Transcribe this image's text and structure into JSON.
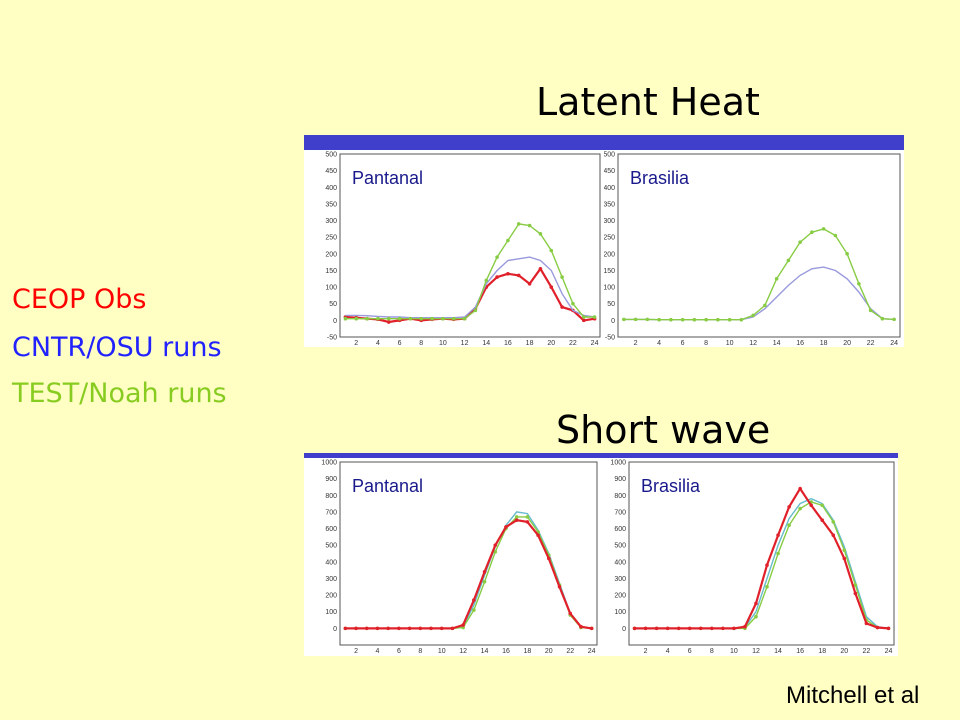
{
  "titles": {
    "latent_heat": "Latent Heat",
    "short_wave": "Short wave"
  },
  "legend": [
    {
      "label": "CEOP Obs",
      "color": "#ff0000"
    },
    {
      "label": "CNTR/OSU runs",
      "color": "#2222ff"
    },
    {
      "label": "TEST/Noah runs",
      "color": "#88cc22"
    }
  ],
  "credit": "Mitchell et al",
  "chart_data": [
    {
      "type": "line",
      "title": "Pantanal",
      "group": "Latent Heat",
      "x": [
        1,
        2,
        3,
        4,
        5,
        6,
        7,
        8,
        9,
        10,
        11,
        12,
        13,
        14,
        15,
        16,
        17,
        18,
        19,
        20,
        21,
        22,
        23,
        24
      ],
      "xticks": [
        2,
        4,
        6,
        8,
        10,
        12,
        14,
        16,
        18,
        20,
        22,
        24
      ],
      "ylim": [
        -50,
        500
      ],
      "yticks": [
        -50,
        0,
        50,
        100,
        150,
        200,
        250,
        300,
        350,
        400,
        450,
        500
      ],
      "series": [
        {
          "color": "#e0202a",
          "markers": true,
          "values": [
            10,
            8,
            5,
            3,
            -5,
            0,
            5,
            0,
            3,
            5,
            3,
            5,
            35,
            100,
            130,
            140,
            135,
            110,
            155,
            100,
            40,
            30,
            0,
            5
          ]
        },
        {
          "color": "#9999dd",
          "markers": false,
          "values": [
            15,
            15,
            14,
            12,
            10,
            10,
            8,
            8,
            8,
            8,
            8,
            10,
            40,
            110,
            150,
            180,
            185,
            190,
            180,
            150,
            80,
            30,
            15,
            10
          ]
        },
        {
          "color": "#88cc44",
          "markers": true,
          "values": [
            5,
            5,
            5,
            5,
            5,
            5,
            5,
            5,
            5,
            5,
            5,
            5,
            30,
            120,
            190,
            240,
            290,
            285,
            260,
            210,
            130,
            50,
            10,
            10
          ]
        }
      ]
    },
    {
      "type": "line",
      "title": "Brasilia",
      "group": "Latent Heat",
      "x": [
        1,
        2,
        3,
        4,
        5,
        6,
        7,
        8,
        9,
        10,
        11,
        12,
        13,
        14,
        15,
        16,
        17,
        18,
        19,
        20,
        21,
        22,
        23,
        24
      ],
      "xticks": [
        2,
        4,
        6,
        8,
        10,
        12,
        14,
        16,
        18,
        20,
        22,
        24
      ],
      "ylim": [
        -50,
        500
      ],
      "yticks": [
        -50,
        0,
        50,
        100,
        150,
        200,
        250,
        300,
        350,
        400,
        450,
        500
      ],
      "series": [
        {
          "color": "#9999dd",
          "markers": false,
          "values": [
            3,
            3,
            3,
            2,
            2,
            2,
            2,
            2,
            2,
            2,
            2,
            10,
            35,
            70,
            105,
            135,
            155,
            160,
            150,
            125,
            85,
            35,
            5,
            3
          ]
        },
        {
          "color": "#88cc44",
          "markers": true,
          "values": [
            3,
            3,
            3,
            2,
            2,
            2,
            2,
            2,
            2,
            2,
            2,
            15,
            45,
            125,
            180,
            235,
            265,
            275,
            255,
            200,
            110,
            30,
            5,
            3
          ]
        }
      ]
    },
    {
      "type": "line",
      "title": "Pantanal",
      "group": "Short wave",
      "x": [
        1,
        2,
        3,
        4,
        5,
        6,
        7,
        8,
        9,
        10,
        11,
        12,
        13,
        14,
        15,
        16,
        17,
        18,
        19,
        20,
        21,
        22,
        23,
        24
      ],
      "xticks": [
        2,
        4,
        6,
        8,
        10,
        12,
        14,
        16,
        18,
        20,
        22,
        24
      ],
      "ylim": [
        -100,
        1000
      ],
      "yticks": [
        0,
        100,
        200,
        300,
        400,
        500,
        600,
        700,
        800,
        900,
        1000
      ],
      "series": [
        {
          "color": "#66bbcc",
          "markers": false,
          "values": [
            0,
            0,
            0,
            0,
            0,
            0,
            0,
            0,
            0,
            0,
            0,
            10,
            140,
            320,
            490,
            620,
            700,
            690,
            590,
            450,
            270,
            90,
            10,
            0
          ]
        },
        {
          "color": "#88cc44",
          "markers": true,
          "values": [
            0,
            0,
            0,
            0,
            0,
            0,
            0,
            0,
            0,
            0,
            0,
            5,
            110,
            280,
            460,
            600,
            670,
            670,
            580,
            440,
            260,
            80,
            5,
            0
          ]
        },
        {
          "color": "#e0202a",
          "markers": true,
          "values": [
            0,
            0,
            0,
            0,
            0,
            0,
            0,
            0,
            0,
            0,
            0,
            20,
            170,
            340,
            500,
            610,
            650,
            640,
            560,
            420,
            250,
            90,
            10,
            0
          ]
        }
      ]
    },
    {
      "type": "line",
      "title": "Brasilia",
      "group": "Short wave",
      "x": [
        1,
        2,
        3,
        4,
        5,
        6,
        7,
        8,
        9,
        10,
        11,
        12,
        13,
        14,
        15,
        16,
        17,
        18,
        19,
        20,
        21,
        22,
        23,
        24
      ],
      "xticks": [
        2,
        4,
        6,
        8,
        10,
        12,
        14,
        16,
        18,
        20,
        22,
        24
      ],
      "ylim": [
        -100,
        1000
      ],
      "yticks": [
        0,
        100,
        200,
        300,
        400,
        500,
        600,
        700,
        800,
        900,
        1000
      ],
      "series": [
        {
          "color": "#66bbcc",
          "markers": false,
          "values": [
            0,
            0,
            0,
            0,
            0,
            0,
            0,
            0,
            0,
            0,
            5,
            100,
            300,
            500,
            660,
            750,
            780,
            750,
            650,
            490,
            280,
            70,
            10,
            0
          ]
        },
        {
          "color": "#88cc44",
          "markers": true,
          "values": [
            0,
            0,
            0,
            0,
            0,
            0,
            0,
            0,
            0,
            0,
            0,
            70,
            250,
            450,
            620,
            720,
            760,
            740,
            640,
            470,
            260,
            50,
            5,
            0
          ]
        },
        {
          "color": "#e0202a",
          "markers": true,
          "values": [
            0,
            0,
            0,
            0,
            0,
            0,
            0,
            0,
            0,
            0,
            10,
            150,
            380,
            560,
            730,
            840,
            740,
            650,
            560,
            420,
            210,
            30,
            5,
            0
          ]
        }
      ]
    }
  ]
}
